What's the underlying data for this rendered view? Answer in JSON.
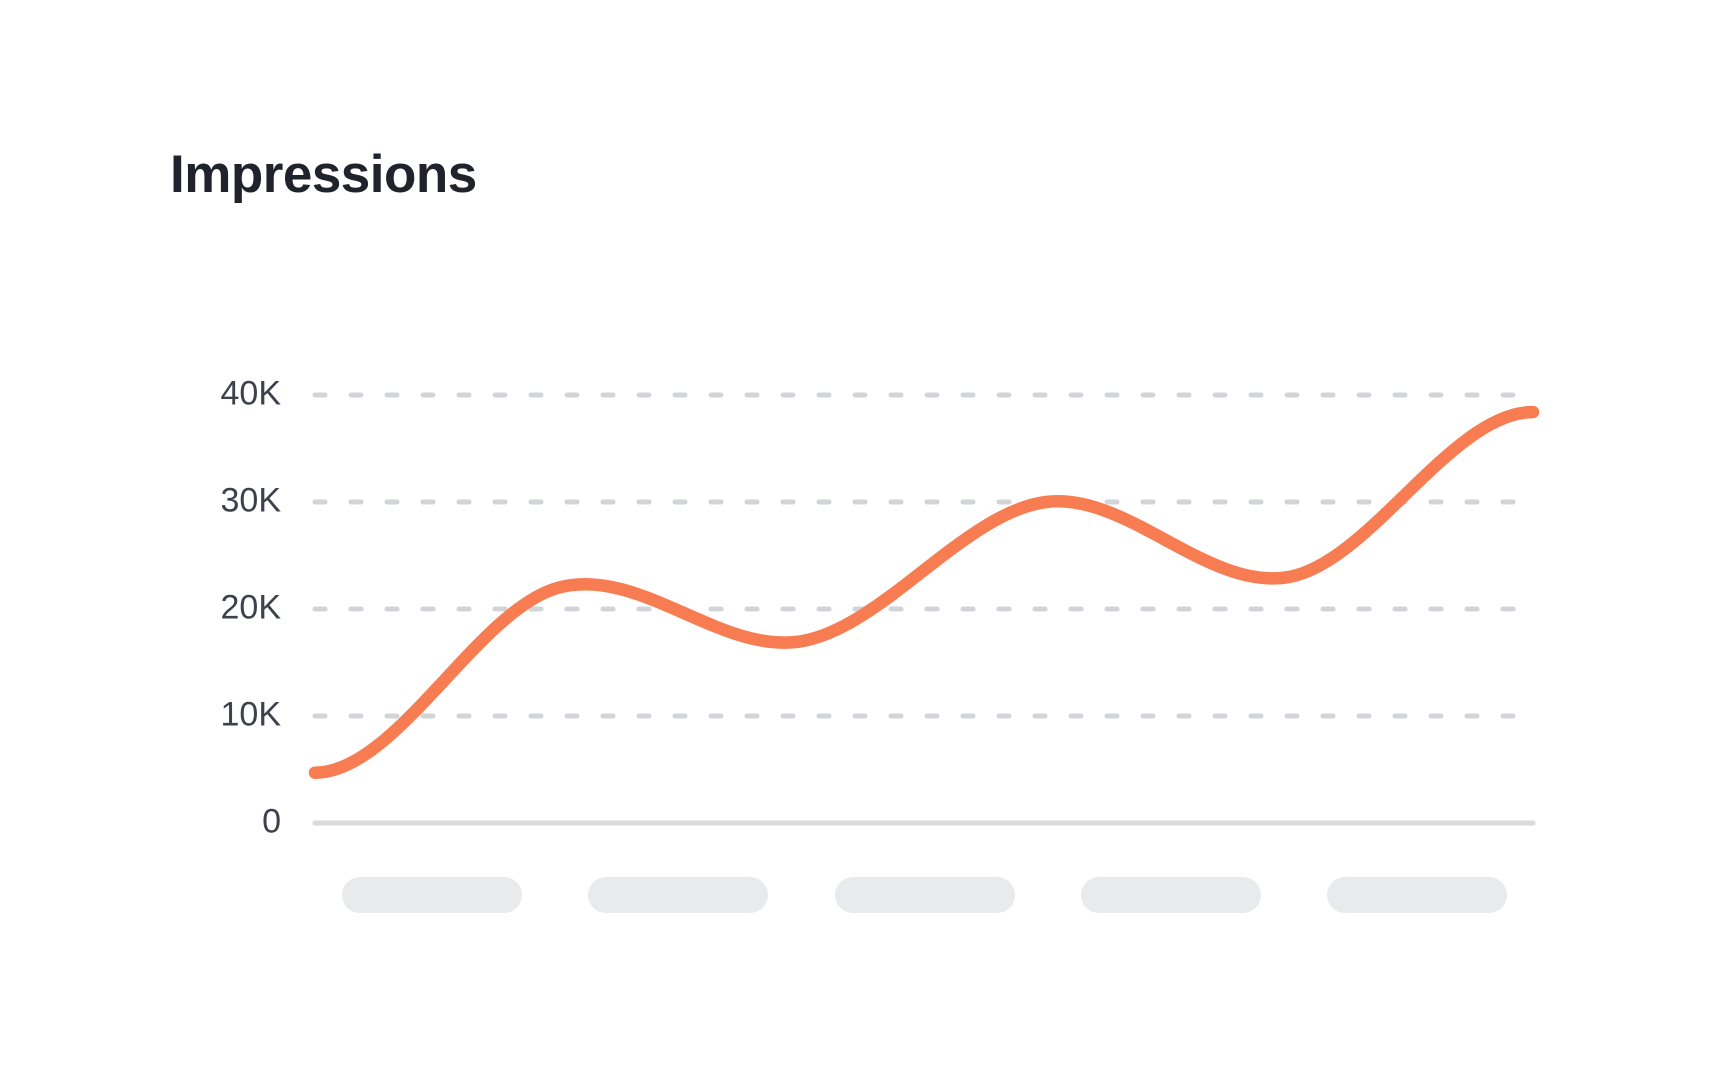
{
  "page": {
    "background": "#FFFFFF"
  },
  "chart_data": {
    "type": "line",
    "title": "Impressions",
    "xlabel": "",
    "ylabel": "",
    "ylim": [
      0,
      40000
    ],
    "grid": {
      "horizontal": true,
      "style": "dashed",
      "zero_line_style": "solid"
    },
    "legend": "none",
    "y_ticks": [
      {
        "label": "0",
        "value": 0
      },
      {
        "label": "10K",
        "value": 10000
      },
      {
        "label": "20K",
        "value": 20000
      },
      {
        "label": "30K",
        "value": 30000
      },
      {
        "label": "40K",
        "value": 40000
      }
    ],
    "x_axis": {
      "labels_visible": false,
      "placeholder_count": 5
    },
    "series": [
      {
        "name": "Impressions",
        "color": "#F87C51",
        "values": [
          4700,
          22000,
          17000,
          30000,
          23000,
          38400
        ]
      }
    ],
    "colors": {
      "gridline": "#D3D4D7",
      "axis_line": "#D8D9DB",
      "tick_label": "#3D414B",
      "title": "#20222C",
      "placeholder_pill": "#E9EAEC",
      "accent": "#F87C51"
    }
  }
}
